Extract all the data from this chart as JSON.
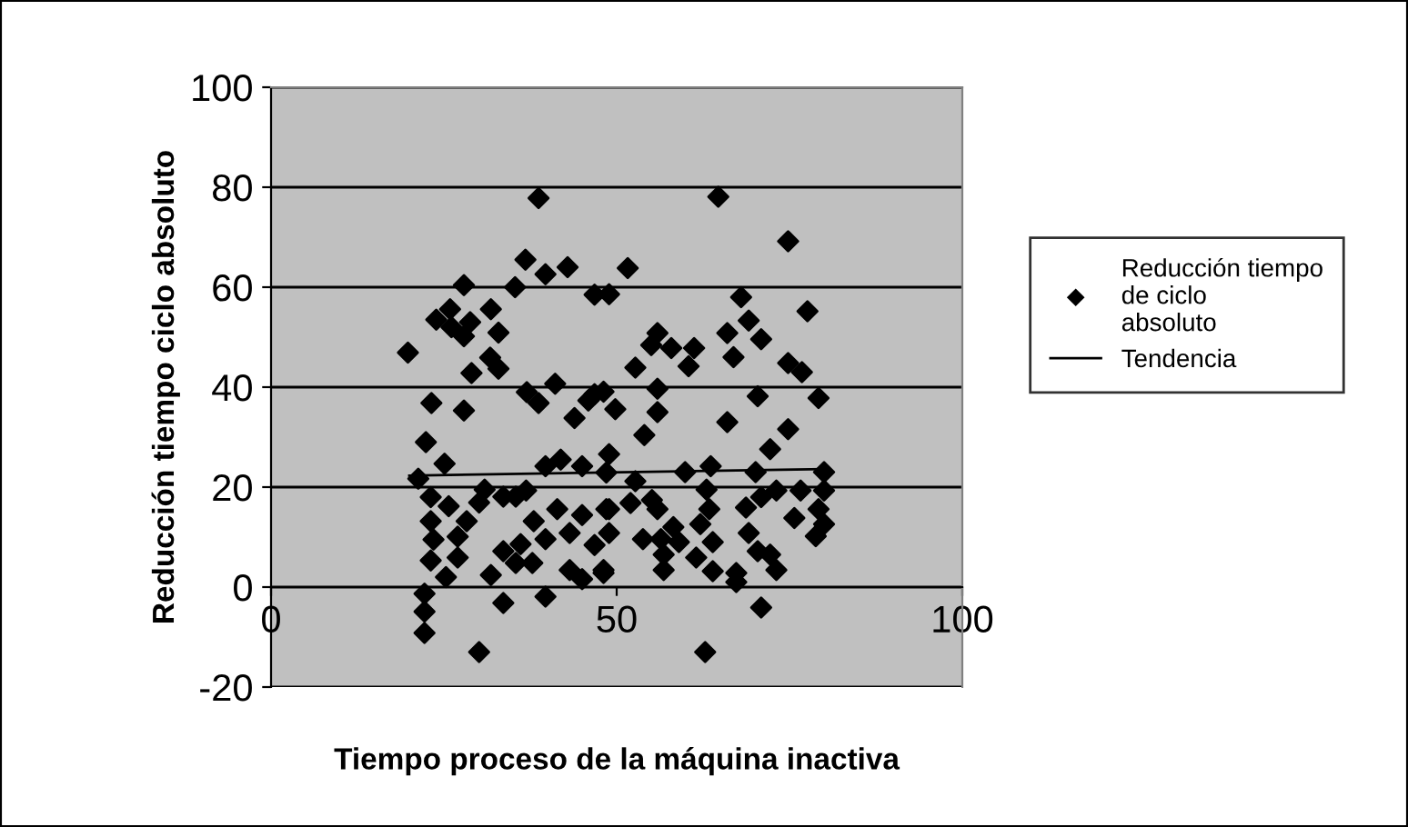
{
  "chart_data": {
    "type": "scatter",
    "xlabel": "Tiempo proceso de la máquina inactiva",
    "ylabel": "Reducción tiempo ciclo absoluto",
    "xlim": [
      0,
      100
    ],
    "xticks": [
      0,
      50,
      100
    ],
    "ylim": [
      -20,
      100
    ],
    "yticks": [
      -20,
      0,
      20,
      40,
      60,
      80,
      100
    ],
    "grid": "y",
    "legend": "right",
    "marker": "diamond",
    "series": [
      {
        "name": "Reducción tiempo de ciclo absoluto",
        "color": "#000000",
        "x": [
          38.7,
          36.8,
          39.7,
          42.9,
          27.9,
          35.3,
          48.9,
          23.9,
          25.9,
          26.1,
          28.8,
          27.9,
          31.8,
          32.9,
          31.7,
          32.9,
          29.0,
          19.8,
          23.2,
          27.9,
          37.0,
          38.7,
          41.1,
          43.9,
          45.9,
          48.1,
          22.4,
          25.1,
          39.7,
          41.9,
          45.0,
          21.3,
          23.1,
          25.7,
          28.3,
          23.1,
          23.5,
          23.1,
          27.0,
          27.0,
          25.3,
          30.9,
          30.1,
          33.6,
          35.4,
          36.9,
          38.0,
          33.6,
          36.1,
          35.4,
          37.8,
          31.8,
          33.6,
          39.7,
          22.2,
          22.2,
          22.2,
          30.1,
          39.7,
          41.4,
          43.2,
          45.0,
          46.8,
          43.2,
          45.0,
          48.1,
          48.5,
          48.5,
          64.7,
          74.8,
          51.6,
          46.8,
          68.0,
          77.6,
          55.9,
          55.0,
          57.9,
          61.2,
          60.4,
          52.7,
          66.0,
          69.1,
          70.9,
          66.9,
          74.8,
          76.8,
          79.2,
          70.4,
          55.9,
          49.8,
          46.8,
          55.9,
          66.0,
          74.8,
          54.0,
          72.2,
          48.9,
          59.9,
          63.6,
          70.1,
          80.0,
          52.7,
          63.0,
          73.1,
          76.6,
          80.0,
          70.9,
          48.9,
          52.0,
          55.1,
          55.9,
          63.4,
          68.7,
          75.7,
          79.2,
          80.0,
          78.8,
          48.9,
          53.8,
          56.4,
          58.2,
          59.0,
          62.1,
          63.9,
          69.1,
          70.4,
          72.2,
          56.8,
          61.5,
          48.1,
          56.8,
          63.9,
          67.3,
          73.1,
          67.3,
          70.9,
          62.8
        ],
        "values": [
          77.8,
          65.5,
          62.6,
          64,
          60.4,
          60,
          58.6,
          53.5,
          55.6,
          52,
          53,
          50.2,
          55.6,
          50.9,
          45.9,
          43.7,
          42.8,
          46.9,
          36.8,
          35.3,
          39,
          36.8,
          40.7,
          33.8,
          37.3,
          39.1,
          29,
          24.7,
          24.2,
          25.5,
          24.2,
          21.7,
          18,
          16.2,
          13.2,
          13.2,
          9.5,
          5.3,
          10.1,
          5.9,
          2,
          19.5,
          16.9,
          18.1,
          18.1,
          19.3,
          13.2,
          7.2,
          8.6,
          4.8,
          4.8,
          2.4,
          -3.2,
          -1.9,
          -1.3,
          -4.9,
          -9.2,
          -13,
          9.6,
          15.6,
          10.8,
          14.4,
          8.4,
          3.4,
          1.6,
          2.8,
          15.6,
          22.9,
          78.1,
          69.2,
          63.8,
          58.5,
          58,
          55.2,
          50.8,
          48.4,
          47.8,
          47.8,
          44.2,
          43.9,
          50.8,
          53.3,
          49.6,
          46,
          44.8,
          43,
          37.8,
          38.2,
          39.7,
          35.6,
          38.6,
          35,
          33,
          31.6,
          30.4,
          27.6,
          26.6,
          23,
          24.2,
          23,
          23,
          21.2,
          19.5,
          19.3,
          19.3,
          19.3,
          18,
          15.6,
          16.8,
          17.4,
          15.6,
          15.6,
          15.9,
          13.8,
          15.6,
          12.6,
          10.2,
          10.8,
          9.6,
          9.6,
          12,
          9,
          12.6,
          9,
          10.8,
          7.2,
          6.5,
          6.5,
          5.9,
          3.4,
          3.4,
          3.2,
          2.8,
          3.4,
          1,
          -4.1,
          -13
        ]
      },
      {
        "name": "Tendencia",
        "color": "#000000",
        "type": "line",
        "marker": "none",
        "line_style": "solid",
        "x": [
          20,
          80
        ],
        "values": [
          22.3,
          23.6
        ]
      }
    ]
  }
}
